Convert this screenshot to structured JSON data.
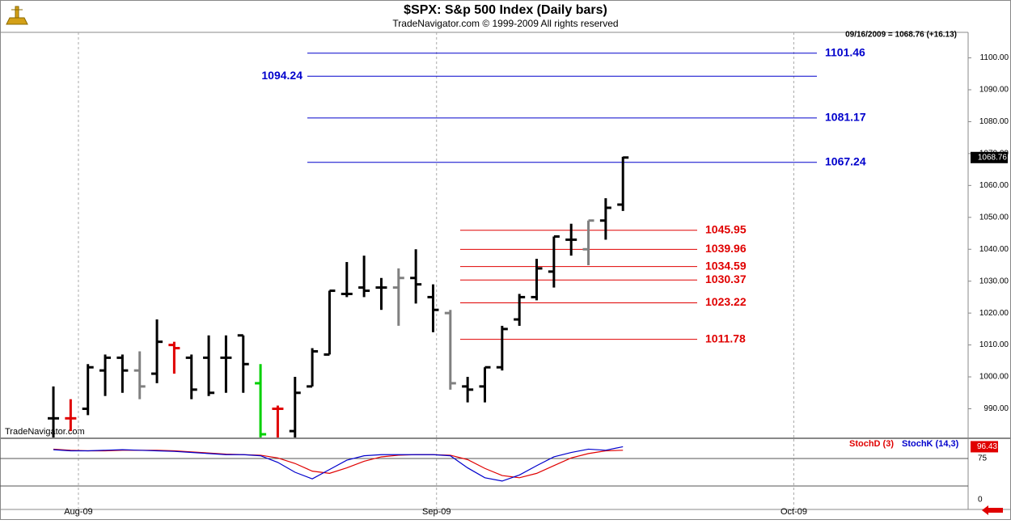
{
  "header": {
    "title": "$SPX:  S&p 500 Index  (Daily bars)",
    "subtitle": "TradeNavigator.com © 1999-2009 All rights reserved",
    "quote": "09/16/2009 = 1068.76 (+16.13)",
    "watermark": "TradeNavigator.com"
  },
  "chart_data": [
    {
      "type": "ohlc",
      "x": [
        0,
        1,
        2,
        3,
        4,
        5,
        6,
        7,
        8,
        9,
        10,
        11,
        12,
        13,
        14,
        15,
        16,
        17,
        18,
        19,
        20,
        21,
        22,
        23,
        24,
        25,
        26,
        27,
        28,
        29,
        30,
        31,
        32,
        33
      ],
      "series": [
        {
          "color": "#000000",
          "open": [
            987,
            987,
            990,
            1002,
            1006,
            1002,
            1001,
            1010,
            1006,
            1006,
            1006,
            1013,
            998,
            990,
            983,
            997,
            1007,
            1026,
            1028,
            1028,
            1028,
            1031,
            1025,
            1020,
            997,
            997,
            1003,
            1018,
            1025,
            1033,
            1043,
            1040,
            1049,
            1054
          ],
          "high": [
            997,
            993,
            1004,
            1007,
            1007,
            1008,
            1018,
            1011,
            1007,
            1013,
            1013,
            1013,
            1004,
            991,
            1000,
            1009,
            1027,
            1036,
            1038,
            1031,
            1034,
            1040,
            1029,
            1021,
            1000,
            1003,
            1016,
            1026,
            1037,
            1044,
            1048,
            1049,
            1056,
            1069
          ],
          "low": [
            981,
            983,
            988,
            994,
            995,
            993,
            998,
            1001,
            993,
            994,
            995,
            995,
            981,
            981,
            981,
            997,
            1007,
            1025,
            1025,
            1021,
            1016,
            1023,
            1014,
            996,
            992,
            992,
            1002,
            1016,
            1024,
            1028,
            1038,
            1035,
            1043,
            1052
          ],
          "close": [
            987,
            987,
            1003,
            1006,
            1002,
            997,
            1011,
            1009,
            996,
            995,
            1006,
            1004,
            982,
            990,
            995,
            1008,
            1027,
            1026,
            1027,
            1028,
            1031,
            1029,
            1021,
            998,
            996,
            1003,
            1015,
            1025,
            1034,
            1044,
            1043,
            1049,
            1053,
            1068.76
          ],
          "bar_colors": [
            "#000000",
            "#e00000",
            "#000000",
            "#000000",
            "#000000",
            "#808080",
            "#000000",
            "#e00000",
            "#000000",
            "#000000",
            "#000000",
            "#000000",
            "#00d000",
            "#e00000",
            "#000000",
            "#000000",
            "#000000",
            "#000000",
            "#000000",
            "#000000",
            "#808080",
            "#000000",
            "#000000",
            "#808080",
            "#000000",
            "#000000",
            "#000000",
            "#000000",
            "#000000",
            "#000000",
            "#000000",
            "#808080",
            "#000000",
            "#000000"
          ]
        }
      ],
      "xlim": [
        -3,
        53
      ],
      "xticks": [
        {
          "value": 1.45,
          "label": "Aug-09"
        },
        {
          "value": 22.2,
          "label": "Sep-09"
        },
        {
          "value": 42.9,
          "label": "Oct-09"
        }
      ],
      "ylim": [
        981,
        1108
      ],
      "yticks": [
        {
          "value": 990,
          "label": "990.00"
        },
        {
          "value": 1000,
          "label": "1000.00"
        },
        {
          "value": 1010,
          "label": "1010.00"
        },
        {
          "value": 1020,
          "label": "1020.00"
        },
        {
          "value": 1030,
          "label": "1030.00"
        },
        {
          "value": 1040,
          "label": "1040.00"
        },
        {
          "value": 1050,
          "label": "1050.00"
        },
        {
          "value": 1060,
          "label": "1060.00"
        },
        {
          "value": 1070,
          "label": "1070.00"
        },
        {
          "value": 1080,
          "label": "1080.00"
        },
        {
          "value": 1090,
          "label": "1090.00"
        },
        {
          "value": 1100,
          "label": "1100.00"
        }
      ],
      "level_groups": [
        {
          "color": "#0000cc",
          "values": [
            1101.46,
            1094.24,
            1081.17,
            1067.24
          ],
          "label_side": [
            "right",
            "left",
            "right",
            "right"
          ]
        },
        {
          "color": "#e00000",
          "values": [
            1045.95,
            1039.96,
            1034.59,
            1030.37,
            1023.22,
            1011.78
          ],
          "label_side": [
            "right",
            "right",
            "right",
            "right",
            "right",
            "right"
          ]
        }
      ]
    },
    {
      "type": "line",
      "x": [
        0,
        1,
        2,
        3,
        4,
        5,
        6,
        7,
        8,
        9,
        10,
        11,
        12,
        13,
        14,
        15,
        16,
        17,
        18,
        19,
        20,
        21,
        22,
        23,
        24,
        25,
        26,
        27,
        28,
        29,
        30,
        31,
        32,
        33
      ],
      "series": [
        {
          "name": "StochD (3)",
          "color": "#e00000",
          "values": [
            92,
            90,
            89,
            89,
            90,
            90,
            90,
            89,
            87,
            85,
            83,
            82,
            81,
            76,
            66,
            52,
            48,
            58,
            70,
            78,
            81,
            82,
            82,
            81,
            73,
            57,
            44,
            40,
            48,
            62,
            76,
            84,
            89,
            90
          ]
        },
        {
          "name": "StochK (14,3)",
          "color": "#0000cc",
          "values": [
            91,
            89,
            89,
            90,
            91,
            90,
            89,
            88,
            86,
            84,
            82,
            82,
            80,
            68,
            50,
            38,
            55,
            72,
            80,
            82,
            82,
            82,
            82,
            80,
            58,
            40,
            34,
            45,
            62,
            78,
            86,
            92,
            90,
            96.43
          ]
        }
      ],
      "xlim": [
        -3,
        53
      ],
      "ylim": [
        -17.6,
        110.3
      ],
      "yticks": [
        0,
        75
      ],
      "levels": [
        25,
        75
      ]
    }
  ]
}
